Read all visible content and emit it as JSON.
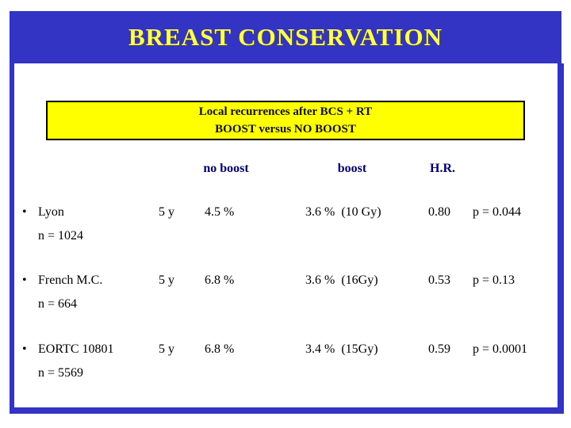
{
  "slide": {
    "title": "BREAST CONSERVATION",
    "banner_line1": "Local recurrences after BCS + RT",
    "banner_line2": "BOOST versus NO BOOST",
    "bullet_char": "•",
    "columns": {
      "no_boost": "no boost",
      "boost": "boost",
      "hr": "H.R."
    },
    "rows": [
      {
        "study": "Lyon",
        "n": "n = 1024",
        "followup": "5 y",
        "no_boost": "4.5 %",
        "boost": "3.6 %  (10 Gy)",
        "hr": "0.80",
        "p": "p = 0.044"
      },
      {
        "study": "French M.C.",
        "n": "n = 664",
        "followup": "5 y",
        "no_boost": "6.8 %",
        "boost": "3.6 %  (16Gy)",
        "hr": "0.53",
        "p": "p = 0.13"
      },
      {
        "study": "EORTC 10801",
        "n": "n = 5569",
        "followup": "5 y",
        "no_boost": "6.8 %",
        "boost": "3.4 %  (15Gy)",
        "hr": "0.59",
        "p": "p = 0.0001"
      }
    ],
    "colors": {
      "frame_blue": "#3333C4",
      "title_yellow": "#FFFF5C",
      "banner_yellow": "#FFFF00",
      "heading_navy": "#000066"
    }
  }
}
